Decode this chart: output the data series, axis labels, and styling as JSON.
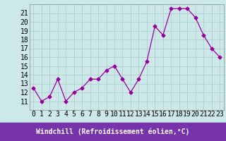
{
  "x": [
    0,
    1,
    2,
    3,
    4,
    5,
    6,
    7,
    8,
    9,
    10,
    11,
    12,
    13,
    14,
    15,
    16,
    17,
    18,
    19,
    20,
    21,
    22,
    23
  ],
  "y": [
    12.5,
    11.0,
    11.5,
    13.5,
    11.0,
    12.0,
    12.5,
    13.5,
    13.5,
    14.5,
    15.0,
    13.5,
    12.0,
    13.5,
    15.5,
    19.5,
    18.5,
    21.5,
    21.5,
    21.5,
    20.5,
    18.5,
    17.0,
    16.0
  ],
  "line_color": "#990099",
  "marker": "D",
  "marker_size": 2.5,
  "bg_color": "#cce8e8",
  "grid_color": "#aacccc",
  "xlabel": "Windchill (Refroidissement éolien,°C)",
  "xlabel_fontsize": 7,
  "tick_fontsize": 7,
  "ylim": [
    10,
    22
  ],
  "xlim": [
    -0.5,
    23.5
  ],
  "yticks": [
    11,
    12,
    13,
    14,
    15,
    16,
    17,
    18,
    19,
    20,
    21
  ],
  "xticks": [
    0,
    1,
    2,
    3,
    4,
    5,
    6,
    7,
    8,
    9,
    10,
    11,
    12,
    13,
    14,
    15,
    16,
    17,
    18,
    19,
    20,
    21,
    22,
    23
  ],
  "xlabel_bg_color": "#7733aa",
  "spine_color": "#888888"
}
